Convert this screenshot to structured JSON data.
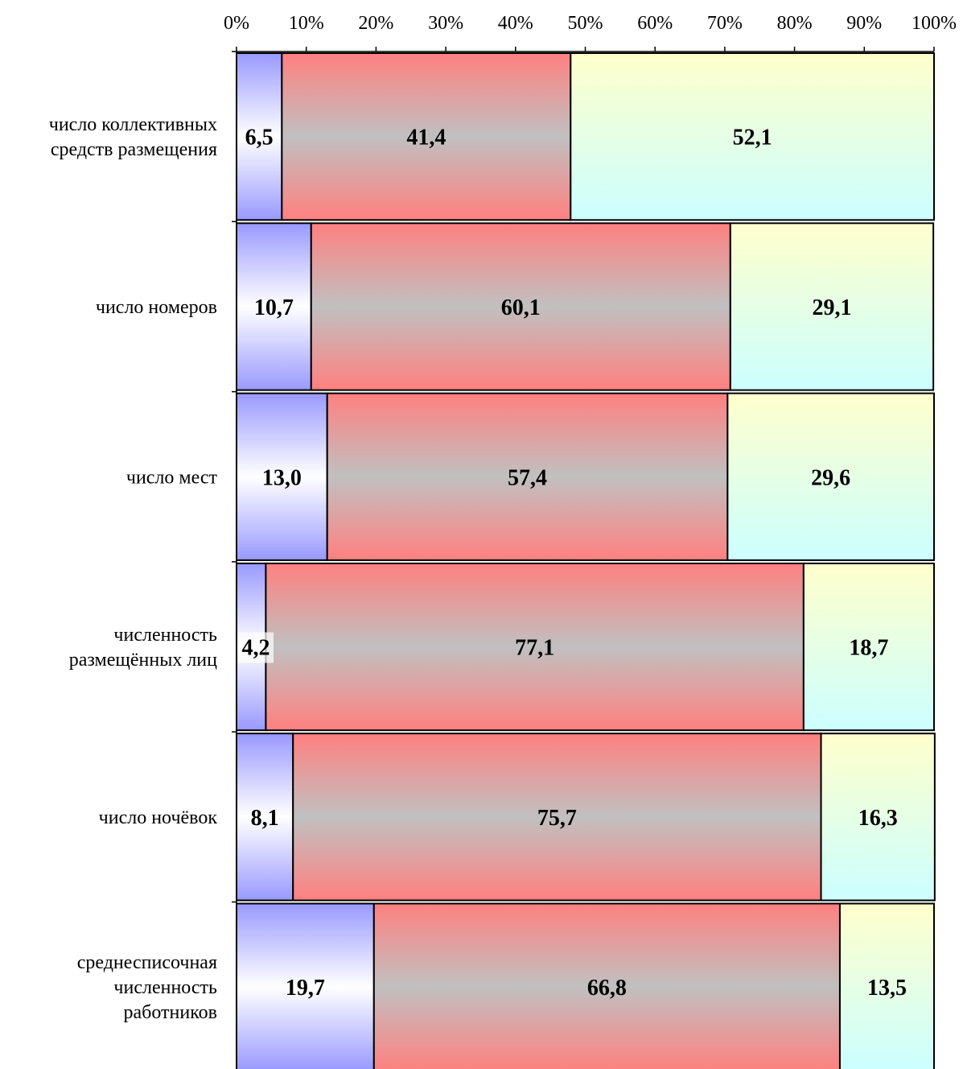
{
  "chart_data": {
    "type": "bar",
    "orientation": "horizontal",
    "stacked": "percent",
    "categories": [
      [
        "число коллективных",
        "средств размещения"
      ],
      [
        "число номеров"
      ],
      [
        "число мест"
      ],
      [
        "численность",
        "размещённых лиц"
      ],
      [
        "число ночёвок"
      ],
      [
        "среднесписочная",
        "численность",
        "работников"
      ]
    ],
    "series": [
      {
        "values": [
          6.5,
          10.7,
          13.0,
          4.2,
          8.1,
          19.7
        ],
        "labels": [
          "6,5",
          "10,7",
          "13,0",
          "4,2",
          "8,1",
          "19,7"
        ],
        "color_edge": "#9999ff",
        "color_center": "#ffffff"
      },
      {
        "values": [
          41.4,
          60.1,
          57.4,
          77.1,
          75.7,
          66.8
        ],
        "labels": [
          "41,4",
          "60,1",
          "57,4",
          "77,1",
          "75,7",
          "66,8"
        ],
        "color_edge": "#ff8080",
        "color_center": "#c0c0c0"
      },
      {
        "values": [
          52.1,
          29.1,
          29.6,
          18.7,
          16.3,
          13.5
        ],
        "labels": [
          "52,1",
          "29,1",
          "29,6",
          "18,7",
          "16,3",
          "13,5"
        ],
        "color_top": "#ffffcc",
        "color_bottom": "#ccffff"
      }
    ],
    "x_ticks": [
      "0%",
      "10%",
      "20%",
      "30%",
      "40%",
      "50%",
      "60%",
      "70%",
      "80%",
      "90%",
      "100%"
    ],
    "xlim": [
      0,
      100
    ],
    "axis_position": "top",
    "grid": false,
    "legend": "none"
  }
}
